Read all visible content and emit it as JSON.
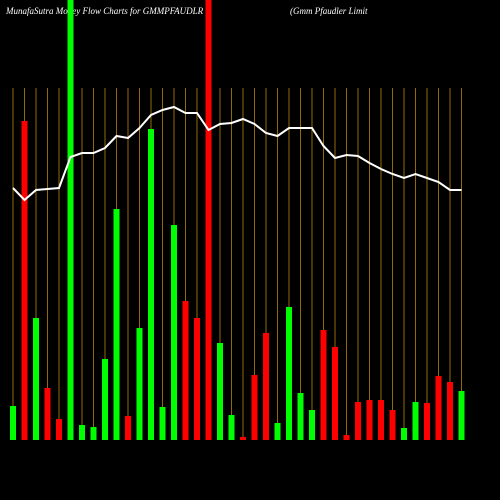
{
  "chart_data": {
    "type": "bar",
    "title": "MunafaSutra  Money Flow  Charts for GMMPFAUDLR",
    "subtitle": "(Gmm Pfaudler Limit",
    "ylim": [
      0,
      440
    ],
    "grid": true,
    "grid_color": "#b8860b",
    "values": [
      34,
      319,
      122,
      52,
      21,
      440,
      15,
      13,
      81,
      231,
      24,
      112,
      311,
      33,
      215,
      139,
      122,
      440,
      97,
      25,
      3,
      65,
      107,
      17,
      133,
      47,
      30,
      110,
      93,
      5,
      38,
      40,
      40,
      30,
      12,
      38,
      37,
      64,
      58,
      49
    ],
    "colors": [
      "#00ff00",
      "#ff0000",
      "#00ff00",
      "#ff0000",
      "#ff0000",
      "#00ff00",
      "#00ff00",
      "#00ff00",
      "#00ff00",
      "#00ff00",
      "#ff0000",
      "#00ff00",
      "#00ff00",
      "#00ff00",
      "#00ff00",
      "#ff0000",
      "#ff0000",
      "#ff0000",
      "#00ff00",
      "#00ff00",
      "#ff0000",
      "#ff0000",
      "#ff0000",
      "#00ff00",
      "#00ff00",
      "#00ff00",
      "#00ff00",
      "#ff0000",
      "#ff0000",
      "#ff0000",
      "#ff0000",
      "#ff0000",
      "#ff0000",
      "#ff0000",
      "#00ff00",
      "#00ff00",
      "#ff0000",
      "#ff0000",
      "#ff0000",
      "#00ff00"
    ],
    "line_color": "#ffffff",
    "line": [
      252,
      240,
      250,
      251,
      252,
      283,
      287,
      287,
      292,
      304,
      302,
      312,
      325,
      330,
      333,
      327,
      327,
      310,
      316,
      317,
      321,
      316,
      307,
      304,
      312,
      312,
      312,
      294,
      282,
      285,
      284,
      277,
      271,
      266,
      262,
      266,
      262,
      258,
      250,
      250
    ]
  }
}
